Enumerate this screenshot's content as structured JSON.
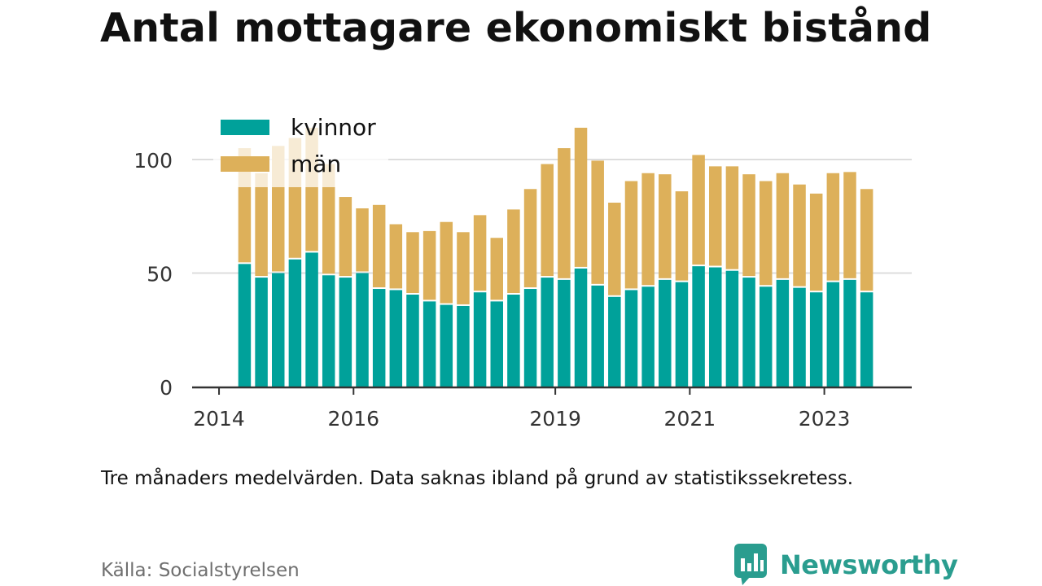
{
  "title": "Antal mottagare ekonomiskt bistånd",
  "note": "Tre månaders medelvärden. Data saknas ibland på grund av statistikssekretess.",
  "source": "Källa: Socialstyrelsen",
  "logo": {
    "text": "Newsworthy",
    "icon": "bar-chart-speech-bubble-icon"
  },
  "colors": {
    "kvinnor": "#00a19a",
    "man": "#ddb05a",
    "grid": "#dddddd",
    "axis": "#333333",
    "brand": "#2a9d8f"
  },
  "chart_data": {
    "type": "bar",
    "stacked": true,
    "grid": true,
    "legend_position": "top-left",
    "ylim": [
      0,
      120
    ],
    "yticks": [
      0,
      50,
      100
    ],
    "xlim": [
      2013.6,
      2024.3
    ],
    "xticks": [
      2014,
      2016,
      2019,
      2021,
      2023
    ],
    "xtick_labels": [
      "2014",
      "2016",
      "2019",
      "2021",
      "2023"
    ],
    "x": [
      2014.38,
      2014.63,
      2014.88,
      2015.13,
      2015.38,
      2015.63,
      2015.88,
      2016.13,
      2016.38,
      2016.63,
      2016.88,
      2017.13,
      2017.38,
      2017.63,
      2017.88,
      2018.13,
      2018.38,
      2018.63,
      2018.88,
      2019.13,
      2019.38,
      2019.63,
      2019.88,
      2020.13,
      2020.38,
      2020.63,
      2020.88,
      2021.13,
      2021.38,
      2021.63,
      2021.88,
      2022.13,
      2022.38,
      2022.63,
      2022.88,
      2023.13,
      2023.38,
      2023.63
    ],
    "series": [
      {
        "name": "kvinnor",
        "values": [
          54,
          48,
          50,
          56,
          59,
          49,
          48,
          50,
          43,
          42.5,
          40.5,
          37.5,
          36,
          35.5,
          41.5,
          37.5,
          40.5,
          43,
          48,
          47,
          52,
          44.5,
          39.5,
          42.5,
          44,
          47,
          46,
          53,
          52.5,
          51,
          48,
          44,
          47,
          43.5,
          41.5,
          46,
          47,
          41.5
        ]
      },
      {
        "name": "män",
        "values": [
          51,
          46,
          56,
          53.5,
          55,
          49,
          35.5,
          28.5,
          37,
          29,
          27.5,
          31,
          36.5,
          32.5,
          34,
          28,
          37.5,
          44,
          50,
          58,
          62,
          55,
          41.5,
          48,
          50,
          46.5,
          40,
          49,
          44.5,
          46,
          45.5,
          46.5,
          47,
          45.5,
          43.5,
          48,
          47.5,
          45.5
        ]
      }
    ]
  }
}
